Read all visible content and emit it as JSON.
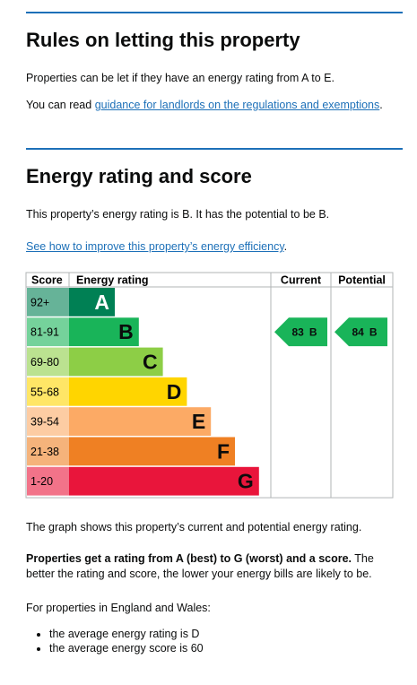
{
  "section1": {
    "heading": "Rules on letting this property",
    "paragraph": "Properties can be let if they have an energy rating from A to E.",
    "guidance_prefix": "You can read ",
    "guidance_link": "guidance for landlords on the regulations and exemptions",
    "guidance_suffix": "."
  },
  "section2": {
    "heading": "Energy rating and score",
    "paragraph": "This property’s energy rating is B. It has the potential to be B.",
    "improve_link": "See how to improve this property’s energy efficiency",
    "improve_suffix": "."
  },
  "epc": {
    "headers": [
      "Score",
      "Energy rating",
      "Current",
      "Potential"
    ],
    "bands": [
      {
        "score": "92+",
        "letter": "A",
        "color": "#008054"
      },
      {
        "score": "81-91",
        "letter": "B",
        "color": "#19b459"
      },
      {
        "score": "69-80",
        "letter": "C",
        "color": "#8dce46"
      },
      {
        "score": "55-68",
        "letter": "D",
        "color": "#ffd500"
      },
      {
        "score": "39-54",
        "letter": "E",
        "color": "#fcaa65"
      },
      {
        "score": "21-38",
        "letter": "F",
        "color": "#ef8023"
      },
      {
        "score": "1-20",
        "letter": "G",
        "color": "#e9153b"
      }
    ],
    "current": {
      "score": 83,
      "letter": "B"
    },
    "potential": {
      "score": 84,
      "letter": "B"
    }
  },
  "notes": {
    "graph_note": "The graph shows this property’s current and potential energy rating.",
    "rating_bold": "Properties get a rating from A (best) to G (worst) and a score.",
    "rating_rest": " The better the rating and score, the lower your energy bills are likely to be.",
    "average_intro": "For properties in England and Wales:",
    "averages": [
      "the average energy rating is D",
      "the average energy score is 60"
    ]
  }
}
